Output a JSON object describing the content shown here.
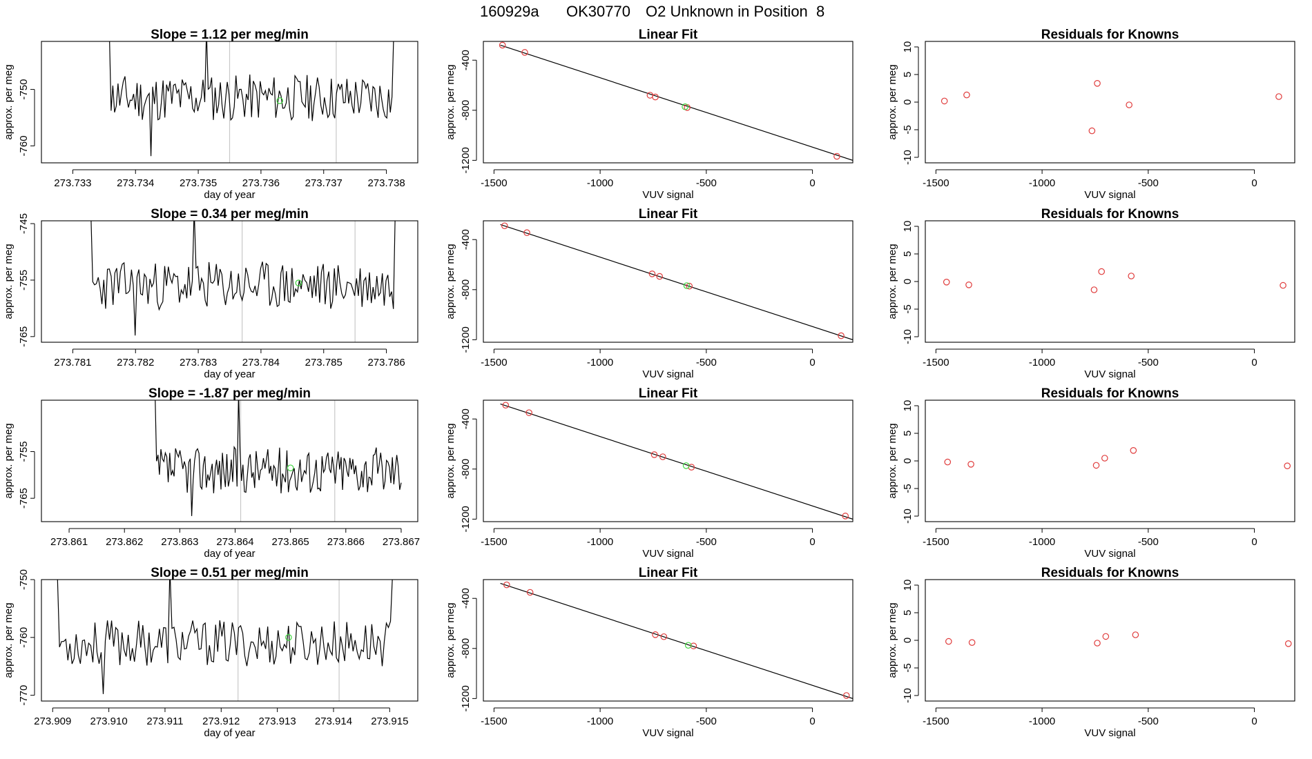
{
  "header": {
    "run_id": "160929a",
    "sample": "OK30770",
    "label": "O2 Unknown in Position  8"
  },
  "colors": {
    "trace": "#000000",
    "known_points": "#e03c3c",
    "unknown_point": "#3ed63e",
    "window_lines": "#c8c8c8",
    "fit_line": "#000000"
  },
  "chart_data": [
    {
      "type": "line",
      "row": 1,
      "title_prefix": "Slope = ",
      "slope": "1.12",
      "title_suffix": " per meg/min",
      "xlabel": "day of year",
      "ylabel": "approx. per meg",
      "xlim": [
        273.7325,
        273.7385
      ],
      "ylim": [
        -763,
        -741.5
      ],
      "xticks": [
        273.733,
        273.734,
        273.735,
        273.736,
        273.737,
        273.738
      ],
      "xtick_labels": [
        "273.733",
        "273.734",
        "273.735",
        "273.736",
        "273.737",
        "273.738"
      ],
      "yticks": [
        -750,
        -760
      ],
      "ytick_labels": [
        "-750",
        "-760"
      ],
      "window_lines": [
        273.7355,
        273.7372
      ],
      "unknown_point": {
        "x": 273.7363,
        "y": -752
      },
      "trace": {
        "x_start": 273.7335,
        "x_end": 273.7382,
        "center": -751.5,
        "amp": 4.2,
        "seed": 11,
        "edge_start": 4,
        "edge_end": 4
      }
    },
    {
      "type": "scatter",
      "row": 1,
      "title": "Linear Fit",
      "xlabel": "VUV signal",
      "ylabel": "approx. per meg",
      "xlim": [
        -1550,
        190
      ],
      "ylim": [
        -1220,
        -250
      ],
      "xticks": [
        -1500,
        -1000,
        -500,
        0
      ],
      "xtick_labels": [
        "-1500",
        "-1000",
        "-500",
        "0"
      ],
      "yticks": [
        -400,
        -800,
        -1200
      ],
      "ytick_labels": [
        "-400",
        "-800",
        "-1200"
      ],
      "fit_line": [
        [
          -1470,
          -280
        ],
        [
          190,
          -1200
        ]
      ],
      "knowns": [
        [
          -1460,
          -280
        ],
        [
          -1355,
          -338
        ],
        [
          -765,
          -680
        ],
        [
          -740,
          -694
        ],
        [
          -590,
          -778
        ],
        [
          115,
          -1168
        ]
      ],
      "unknown": [
        -600,
        -772
      ]
    },
    {
      "type": "scatter",
      "row": 1,
      "title": "Residuals for Knowns",
      "xlabel": "VUV signal",
      "ylabel": "approx. per meg",
      "xlim": [
        -1550,
        190
      ],
      "ylim": [
        -11,
        11
      ],
      "xticks": [
        -1500,
        -1000,
        -500,
        0
      ],
      "xtick_labels": [
        "-1500",
        "-1000",
        "-500",
        "0"
      ],
      "yticks": [
        10,
        5,
        0,
        -5,
        -10
      ],
      "ytick_labels": [
        "10",
        "5",
        "0",
        "-5",
        "-10"
      ],
      "knowns": [
        [
          -1460,
          0.2
        ],
        [
          -1355,
          1.3
        ],
        [
          -765,
          -5.2
        ],
        [
          -740,
          3.4
        ],
        [
          -590,
          -0.5
        ],
        [
          115,
          1.0
        ]
      ]
    },
    {
      "type": "line",
      "row": 2,
      "title_prefix": "Slope = ",
      "slope": "0.34",
      "title_suffix": " per meg/min",
      "xlabel": "day of year",
      "ylabel": "approx. per meg",
      "xlim": [
        273.7805,
        273.7865
      ],
      "ylim": [
        -766,
        -744.5
      ],
      "xticks": [
        273.781,
        273.782,
        273.783,
        273.784,
        273.785,
        273.786
      ],
      "xtick_labels": [
        "273.781",
        "273.782",
        "273.783",
        "273.784",
        "273.785",
        "273.786"
      ],
      "yticks": [
        -745,
        -755,
        -765
      ],
      "ytick_labels": [
        "-745",
        "-755",
        "-765"
      ],
      "window_lines": [
        273.7837,
        273.7855
      ],
      "unknown_point": {
        "x": 273.7846,
        "y": -755.5
      },
      "trace": {
        "x_start": 273.7812,
        "x_end": 273.7862,
        "center": -756,
        "amp": 4.3,
        "seed": 23,
        "edge_start": 4,
        "edge_end": 3
      }
    },
    {
      "type": "scatter",
      "row": 2,
      "title": "Linear Fit",
      "xlabel": "VUV signal",
      "ylabel": "approx. per meg",
      "xlim": [
        -1550,
        190
      ],
      "ylim": [
        -1220,
        -250
      ],
      "xticks": [
        -1500,
        -1000,
        -500,
        0
      ],
      "xtick_labels": [
        "-1500",
        "-1000",
        "-500",
        "0"
      ],
      "yticks": [
        -400,
        -800,
        -1200
      ],
      "ytick_labels": [
        "-400",
        "-800",
        "-1200"
      ],
      "fit_line": [
        [
          -1470,
          -280
        ],
        [
          190,
          -1200
        ]
      ],
      "knowns": [
        [
          -1450,
          -290
        ],
        [
          -1345,
          -345
        ],
        [
          -755,
          -674
        ],
        [
          -720,
          -694
        ],
        [
          -580,
          -772
        ],
        [
          135,
          -1168
        ]
      ],
      "unknown": [
        -592,
        -768
      ]
    },
    {
      "type": "scatter",
      "row": 2,
      "title": "Residuals for Knowns",
      "xlabel": "VUV signal",
      "ylabel": "approx. per meg",
      "xlim": [
        -1550,
        190
      ],
      "ylim": [
        -11,
        11
      ],
      "xticks": [
        -1500,
        -1000,
        -500,
        0
      ],
      "xtick_labels": [
        "-1500",
        "-1000",
        "-500",
        "0"
      ],
      "yticks": [
        10,
        5,
        0,
        -5,
        -10
      ],
      "ytick_labels": [
        "10",
        "5",
        "0",
        "-5",
        "-10"
      ],
      "knowns": [
        [
          -1450,
          -0.1
        ],
        [
          -1345,
          -0.6
        ],
        [
          -755,
          -1.5
        ],
        [
          -720,
          1.8
        ],
        [
          -580,
          1.0
        ],
        [
          135,
          -0.7
        ]
      ]
    },
    {
      "type": "line",
      "row": 3,
      "title_prefix": "Slope = ",
      "slope": "-1.87",
      "title_suffix": " per meg/min",
      "xlabel": "day of year",
      "ylabel": "approx. per meg",
      "xlim": [
        273.8605,
        273.8673
      ],
      "ylim": [
        -770,
        -744
      ],
      "xticks": [
        273.861,
        273.862,
        273.863,
        273.864,
        273.865,
        273.866,
        273.867
      ],
      "xtick_labels": [
        "273.861",
        "273.862",
        "273.863",
        "273.864",
        "273.865",
        "273.866",
        "273.867"
      ],
      "yticks": [
        -755,
        -765
      ],
      "ytick_labels": [
        "-755",
        "-765"
      ],
      "window_lines": [
        273.8641,
        273.8658
      ],
      "unknown_point": {
        "x": 273.865,
        "y": -758.5
      },
      "trace": {
        "x_start": 273.8625,
        "x_end": 273.867,
        "center": -759,
        "amp": 5.0,
        "seed": 37,
        "edge_start": 3,
        "edge_end": 0
      }
    },
    {
      "type": "scatter",
      "row": 3,
      "title": "Linear Fit",
      "xlabel": "VUV signal",
      "ylabel": "approx. per meg",
      "xlim": [
        -1550,
        190
      ],
      "ylim": [
        -1220,
        -250
      ],
      "xticks": [
        -1500,
        -1000,
        -500,
        0
      ],
      "xtick_labels": [
        "-1500",
        "-1000",
        "-500",
        "0"
      ],
      "yticks": [
        -400,
        -800,
        -1200
      ],
      "ytick_labels": [
        "-400",
        "-800",
        "-1200"
      ],
      "fit_line": [
        [
          -1470,
          -280
        ],
        [
          190,
          -1200
        ]
      ],
      "knowns": [
        [
          -1445,
          -290
        ],
        [
          -1335,
          -350
        ],
        [
          -745,
          -685
        ],
        [
          -705,
          -702
        ],
        [
          -570,
          -785
        ],
        [
          155,
          -1175
        ]
      ],
      "unknown": [
        -595,
        -773
      ]
    },
    {
      "type": "scatter",
      "row": 3,
      "title": "Residuals for Knowns",
      "xlabel": "VUV signal",
      "ylabel": "approx. per meg",
      "xlim": [
        -1550,
        190
      ],
      "ylim": [
        -11,
        11
      ],
      "xticks": [
        -1500,
        -1000,
        -500,
        0
      ],
      "xtick_labels": [
        "-1500",
        "-1000",
        "-500",
        "0"
      ],
      "yticks": [
        10,
        5,
        0,
        -5,
        -10
      ],
      "ytick_labels": [
        "10",
        "5",
        "0",
        "-5",
        "-10"
      ],
      "knowns": [
        [
          -1445,
          -0.2
        ],
        [
          -1335,
          -0.6
        ],
        [
          -745,
          -0.8
        ],
        [
          -705,
          0.5
        ],
        [
          -570,
          1.9
        ],
        [
          155,
          -0.9
        ]
      ]
    },
    {
      "type": "line",
      "row": 4,
      "title_prefix": "Slope = ",
      "slope": "0.51",
      "title_suffix": " per meg/min",
      "xlabel": "day of year",
      "ylabel": "approx. per meg",
      "xlim": [
        273.9088,
        273.9155
      ],
      "ylim": [
        -771,
        -750
      ],
      "xticks": [
        273.909,
        273.91,
        273.911,
        273.912,
        273.913,
        273.914,
        273.915
      ],
      "xtick_labels": [
        "273.909",
        "273.910",
        "273.911",
        "273.912",
        "273.913",
        "273.914",
        "273.915"
      ],
      "yticks": [
        -750,
        -760,
        -770
      ],
      "ytick_labels": [
        "-750",
        "-760",
        "-770"
      ],
      "window_lines": [
        273.9123,
        273.9141
      ],
      "unknown_point": {
        "x": 273.9132,
        "y": -760
      },
      "trace": {
        "x_start": 273.9089,
        "x_end": 273.9152,
        "center": -761,
        "amp": 4.0,
        "seed": 53,
        "edge_start": 6,
        "edge_end": 5
      }
    },
    {
      "type": "scatter",
      "row": 4,
      "title": "Linear Fit",
      "xlabel": "VUV signal",
      "ylabel": "approx. per meg",
      "xlim": [
        -1550,
        190
      ],
      "ylim": [
        -1220,
        -250
      ],
      "xticks": [
        -1500,
        -1000,
        -500,
        0
      ],
      "xtick_labels": [
        "-1500",
        "-1000",
        "-500",
        "0"
      ],
      "yticks": [
        -400,
        -800,
        -1200
      ],
      "ytick_labels": [
        "-400",
        "-800",
        "-1200"
      ],
      "fit_line": [
        [
          -1470,
          -280
        ],
        [
          190,
          -1200
        ]
      ],
      "knowns": [
        [
          -1440,
          -292
        ],
        [
          -1330,
          -352
        ],
        [
          -740,
          -690
        ],
        [
          -700,
          -706
        ],
        [
          -560,
          -780
        ],
        [
          160,
          -1176
        ]
      ],
      "unknown": [
        -585,
        -775
      ]
    },
    {
      "type": "scatter",
      "row": 4,
      "title": "Residuals for Knowns",
      "xlabel": "VUV signal",
      "ylabel": "approx. per meg",
      "xlim": [
        -1550,
        190
      ],
      "ylim": [
        -11,
        11
      ],
      "xticks": [
        -1500,
        -1000,
        -500,
        0
      ],
      "xtick_labels": [
        "-1500",
        "-1000",
        "-500",
        "0"
      ],
      "yticks": [
        10,
        5,
        0,
        -5,
        -10
      ],
      "ytick_labels": [
        "10",
        "5",
        "0",
        "-5",
        "-10"
      ],
      "knowns": [
        [
          -1440,
          -0.2
        ],
        [
          -1330,
          -0.4
        ],
        [
          -740,
          -0.5
        ],
        [
          -700,
          0.7
        ],
        [
          -560,
          1.0
        ],
        [
          160,
          -0.6
        ]
      ]
    }
  ]
}
